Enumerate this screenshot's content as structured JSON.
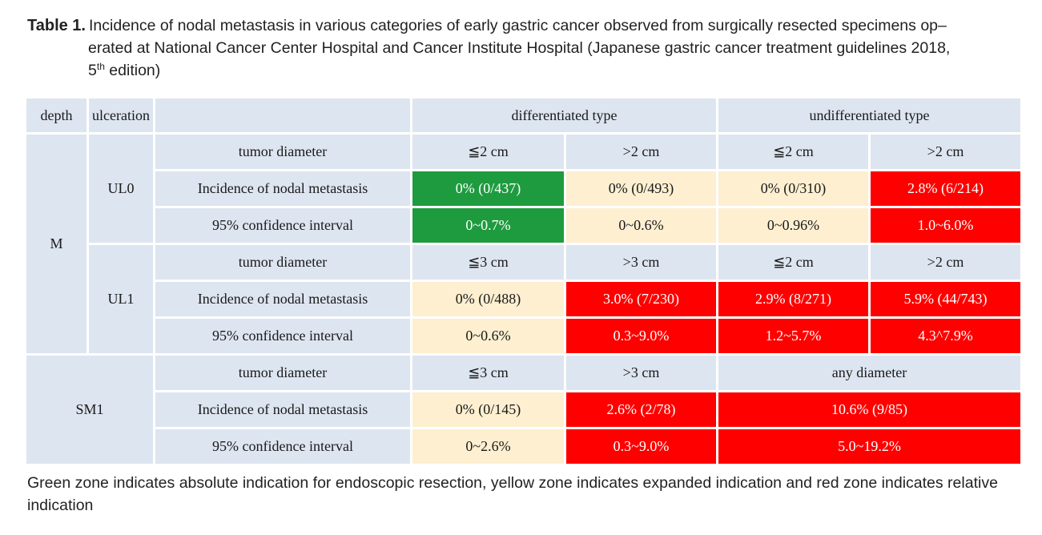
{
  "caption": {
    "label": "Table 1.",
    "text_line1": "Incidence of nodal metastasis in various categories of early gastric cancer observed from surgically resected specimens op–",
    "text_line2": "erated at National Cancer Center Hospital and Cancer Institute Hospital (Japanese gastric cancer treatment guidelines 2018,",
    "edition_number": "5",
    "edition_sup": "th",
    "edition_rest": " edition)"
  },
  "header": {
    "depth": "depth",
    "ulceration": "ulceration",
    "blank": "",
    "differentiated": "differentiated type",
    "undifferentiated": "undifferentiated type"
  },
  "labels": {
    "tumor_diameter": "tumor diameter",
    "incidence": "Incidence of nodal metastasis",
    "ci": "95% confidence interval"
  },
  "groups": {
    "m": "M",
    "ul0": "UL0",
    "ul1": "UL1",
    "sm1": "SM1"
  },
  "m_ul0": {
    "diameters": [
      "≦2 cm",
      ">2 cm",
      "≦2 cm",
      ">2 cm"
    ],
    "incidence": [
      "0% (0/437)",
      "0% (0/493)",
      "0% (0/310)",
      "2.8% (6/214)"
    ],
    "ci": [
      "0~0.7%",
      "0~0.6%",
      "0~0.96%",
      "1.0~6.0%"
    ]
  },
  "m_ul1": {
    "diameters": [
      "≦3 cm",
      ">3 cm",
      "≦2 cm",
      ">2 cm"
    ],
    "incidence": [
      "0% (0/488)",
      "3.0% (7/230)",
      "2.9% (8/271)",
      "5.9% (44/743)"
    ],
    "ci": [
      "0~0.6%",
      "0.3~9.0%",
      "1.2~5.7%",
      "4.3^7.9%"
    ]
  },
  "sm1": {
    "diameters": [
      "≦3 cm",
      ">3 cm",
      "any diameter"
    ],
    "incidence": [
      "0% (0/145)",
      "2.6% (2/78)",
      "10.6% (9/85)"
    ],
    "ci": [
      "0~2.6%",
      "0.3~9.0%",
      "5.0~19.2%"
    ]
  },
  "zone_colors": {
    "header": "#dde5f0",
    "green": "#1e9b3e",
    "yellow": "#fdefd0",
    "red": "#ff0000"
  },
  "footnote": "Green zone indicates absolute indication for endoscopic resection, yellow zone indicates expanded indication and red zone indicates relative indication"
}
